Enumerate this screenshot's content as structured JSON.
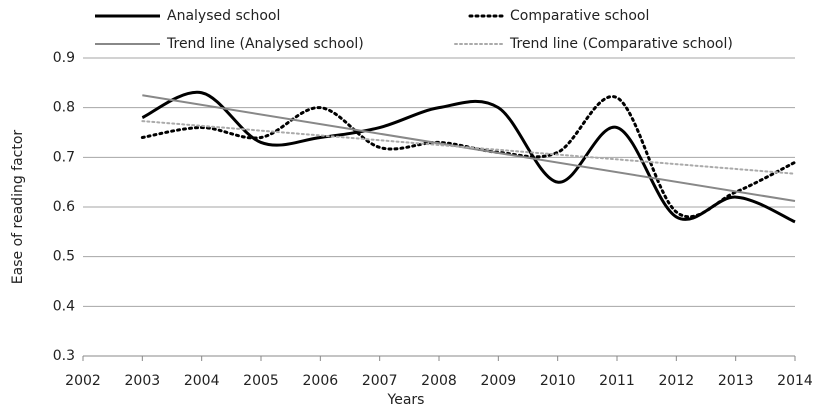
{
  "chart_data": {
    "type": "line",
    "x_label": "Years",
    "y_label": "Ease of reading factor",
    "x": [
      2003,
      2004,
      2005,
      2006,
      2007,
      2008,
      2009,
      2010,
      2011,
      2012,
      2013,
      2014
    ],
    "series": [
      {
        "name": "Analysed school",
        "color": "#000000",
        "style": "solid",
        "width": 3,
        "values": [
          0.78,
          0.83,
          0.73,
          0.74,
          0.76,
          0.8,
          0.8,
          0.65,
          0.76,
          0.58,
          0.62,
          0.57
        ]
      },
      {
        "name": "Comparative school",
        "color": "#000000",
        "style": "dotted",
        "width": 3,
        "values": [
          0.74,
          0.76,
          0.74,
          0.8,
          0.72,
          0.73,
          0.71,
          0.71,
          0.82,
          0.59,
          0.63,
          0.69
        ]
      },
      {
        "name": "Trend line (Analysed school)",
        "color": "#888888",
        "style": "solid",
        "width": 2,
        "x": [
          2003,
          2014
        ],
        "values": [
          0.825,
          0.612
        ]
      },
      {
        "name": "Trend line (Comparative school)",
        "color": "#aaaaaa",
        "style": "dotted",
        "width": 2,
        "x": [
          2003,
          2014
        ],
        "values": [
          0.773,
          0.667
        ]
      }
    ],
    "xlim": [
      2002,
      2014
    ],
    "xticks": [
      2002,
      2003,
      2004,
      2005,
      2006,
      2007,
      2008,
      2009,
      2010,
      2011,
      2012,
      2013,
      2014
    ],
    "ylim": [
      0.3,
      0.9
    ],
    "yticks": [
      0.3,
      0.4,
      0.5,
      0.6,
      0.7,
      0.8,
      0.9
    ],
    "grid": true,
    "smooth": true,
    "legend": "top"
  }
}
